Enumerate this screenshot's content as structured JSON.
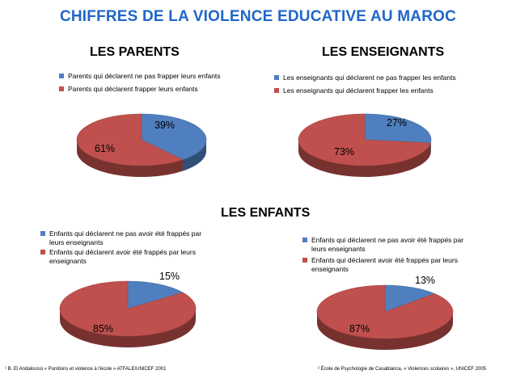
{
  "page_title": "CHIFFRES DE LA VIOLENCE EDUCATIVE AU MAROC",
  "section_enfants": "LES ENFANTS",
  "colors": {
    "blue": "#4f7fbf",
    "red": "#c0504d"
  },
  "chart_data": [
    {
      "type": "pie",
      "title": "LES PARENTS",
      "labels": [
        "Parents qui déclarent ne pas frapper leurs enfants",
        "Parents qui déclarent frapper leurs enfants"
      ],
      "values": [
        39,
        61
      ],
      "value_labels": [
        "39%",
        "61%"
      ]
    },
    {
      "type": "pie",
      "title": "LES ENSEIGNANTS",
      "labels": [
        "Les enseignants qui déclarent ne pas frapper les enfants",
        "Les enseignants qui déclarent frapper les enfants"
      ],
      "values": [
        27,
        73
      ],
      "value_labels": [
        "27%",
        "73%"
      ]
    },
    {
      "type": "pie",
      "title": "",
      "labels": [
        "Enfants qui déclarent ne pas avoir été frappés par leurs enseignants",
        "Enfants qui déclarent avoir été frappés par leurs enseignants"
      ],
      "values": [
        15,
        85
      ],
      "value_labels": [
        "15%",
        "85%"
      ]
    },
    {
      "type": "pie",
      "title": "",
      "labels": [
        "Enfants qui déclarent ne pas avoir été frappés par leurs enseignants",
        "Enfants qui déclarent avoir été frappés par leurs enseignants"
      ],
      "values": [
        13,
        87
      ],
      "value_labels": [
        "13%",
        "87%"
      ]
    }
  ],
  "footnotes": [
    "¹ B. El Andaloussi « Punitions et violence à l'école » ATFALE/UNICEF 2001",
    "² École de Psychologie de Casablanca, « Violences scolaires », UNICEF 2005"
  ]
}
